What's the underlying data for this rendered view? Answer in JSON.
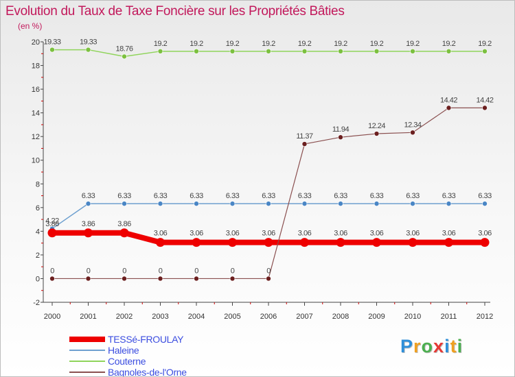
{
  "header": {
    "title": "Evolution du Taux de Taxe Foncière sur les Propriétés Bâties",
    "subtitle": "(en %)"
  },
  "brand": {
    "letters": [
      "P",
      "r",
      "o",
      "x",
      "i",
      "t",
      "i"
    ],
    "colors": [
      "#2e8fd9",
      "#f0a020",
      "#4caf50",
      "#e53935",
      "#2e8fd9",
      "#f0a020",
      "#4caf50"
    ]
  },
  "chart_data": {
    "type": "line",
    "title": "Evolution du Taux de Taxe Foncière sur les Propriétés Bâties",
    "ylabel": "(en %)",
    "xlabel": "",
    "categories": [
      "2000",
      "2001",
      "2002",
      "2003",
      "2004",
      "2005",
      "2006",
      "2007",
      "2008",
      "2009",
      "2010",
      "2011",
      "2012"
    ],
    "ylim": [
      -2,
      20
    ],
    "yticks": [
      -2,
      0,
      2,
      4,
      6,
      8,
      10,
      12,
      14,
      16,
      18,
      20
    ],
    "grid": false,
    "legend_position": "bottom-left",
    "series": [
      {
        "name": "Couterne",
        "color": "#8fd45a",
        "marker": "#7cc040",
        "width": 1.5,
        "r": 3.5,
        "values": [
          19.33,
          19.33,
          18.76,
          19.2,
          19.2,
          19.2,
          19.2,
          19.2,
          19.2,
          19.2,
          19.2,
          19.2,
          19.2
        ],
        "labels": [
          "19.33",
          "19.33",
          "18.76",
          "19.2",
          "19.2",
          "19.2",
          "19.2",
          "19.2",
          "19.2",
          "19.2",
          "19.2",
          "19.2",
          "19.2"
        ]
      },
      {
        "name": "Haleine",
        "color": "#6ea0d0",
        "marker": "#4a86c5",
        "width": 1.5,
        "r": 3.5,
        "values": [
          4.22,
          6.33,
          6.33,
          6.33,
          6.33,
          6.33,
          6.33,
          6.33,
          6.33,
          6.33,
          6.33,
          6.33,
          6.33
        ],
        "labels": [
          "4.22",
          "6.33",
          "6.33",
          "6.33",
          "6.33",
          "6.33",
          "6.33",
          "6.33",
          "6.33",
          "6.33",
          "6.33",
          "6.33",
          "6.33"
        ]
      },
      {
        "name": "TESSé-FROULAY",
        "color": "#ee0000",
        "marker": "#ee0000",
        "width": 8,
        "r": 6.5,
        "values": [
          3.86,
          3.86,
          3.86,
          3.06,
          3.06,
          3.06,
          3.06,
          3.06,
          3.06,
          3.06,
          3.06,
          3.06,
          3.06
        ],
        "labels": [
          "3.86",
          "3.86",
          "3.86",
          "3.06",
          "3.06",
          "3.06",
          "3.06",
          "3.06",
          "3.06",
          "3.06",
          "3.06",
          "3.06",
          "3.06"
        ]
      },
      {
        "name": "Bagnoles-de-l'Orne",
        "color": "#8a4f4f",
        "marker": "#6b1f1f",
        "width": 1.2,
        "r": 3.5,
        "values": [
          0,
          0,
          0,
          0,
          0,
          0,
          0,
          11.37,
          11.94,
          12.24,
          12.34,
          14.42,
          14.42
        ],
        "labels": [
          "0",
          "0",
          "0",
          "0",
          "0",
          "0",
          "0",
          "11.37",
          "11.94",
          "12.24",
          "12.34",
          "14.42",
          "14.42"
        ]
      }
    ],
    "legend": [
      {
        "name": "TESSé-FROULAY",
        "color": "#ee0000",
        "thickness": 8
      },
      {
        "name": "Haleine",
        "color": "#6ea0d0",
        "thickness": 2
      },
      {
        "name": "Couterne",
        "color": "#8fd45a",
        "thickness": 2
      },
      {
        "name": "Bagnoles-de-l'Orne",
        "color": "#8a4f4f",
        "thickness": 2
      }
    ]
  }
}
